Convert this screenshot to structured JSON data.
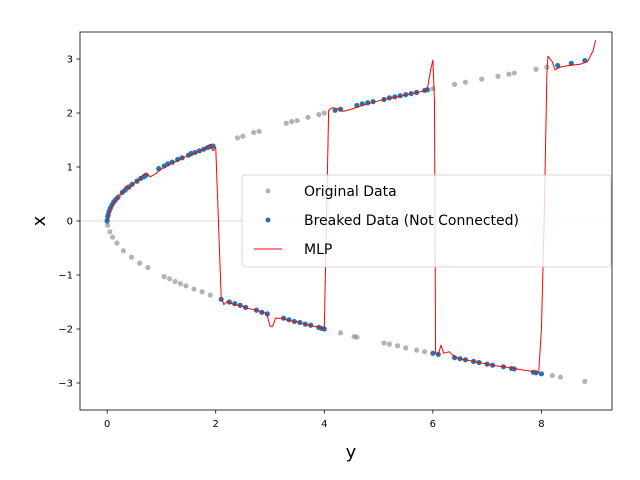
{
  "chart_data": {
    "type": "scatter",
    "xlabel": "y",
    "ylabel": "x",
    "xlim": [
      -0.5,
      9.3
    ],
    "ylim": [
      -3.5,
      3.5
    ],
    "xticks": [
      0,
      2,
      4,
      6,
      8
    ],
    "yticks": [
      -3,
      -2,
      -1,
      0,
      1,
      2,
      3
    ],
    "hline": 0,
    "grid": false,
    "legend_position": "center-right",
    "series": [
      {
        "name": "Original Data",
        "kind": "scatter",
        "color": "#808080",
        "points": [
          [
            0.0,
            0.02
          ],
          [
            0.01,
            -0.08
          ],
          [
            0.03,
            0.16
          ],
          [
            0.05,
            -0.2
          ],
          [
            0.08,
            0.28
          ],
          [
            0.1,
            -0.3
          ],
          [
            0.14,
            0.37
          ],
          [
            0.18,
            -0.41
          ],
          [
            0.22,
            0.46
          ],
          [
            0.3,
            -0.55
          ],
          [
            0.35,
            0.59
          ],
          [
            0.45,
            -0.67
          ],
          [
            0.55,
            0.73
          ],
          [
            0.6,
            -0.78
          ],
          [
            0.7,
            0.84
          ],
          [
            0.75,
            -0.86
          ],
          [
            1.05,
            -1.03
          ],
          [
            1.15,
            -1.07
          ],
          [
            1.25,
            -1.12
          ],
          [
            1.35,
            -1.16
          ],
          [
            1.45,
            -1.2
          ],
          [
            1.6,
            -1.26
          ],
          [
            1.75,
            -1.31
          ],
          [
            1.9,
            -1.37
          ],
          [
            2.4,
            1.54
          ],
          [
            2.5,
            1.57
          ],
          [
            2.7,
            1.64
          ],
          [
            2.8,
            1.66
          ],
          [
            3.3,
            1.81
          ],
          [
            3.4,
            1.84
          ],
          [
            3.5,
            1.86
          ],
          [
            3.7,
            1.92
          ],
          [
            3.9,
            1.97
          ],
          [
            4.0,
            2.0
          ],
          [
            4.3,
            -2.07
          ],
          [
            4.55,
            -2.14
          ],
          [
            4.6,
            -2.15
          ],
          [
            5.1,
            -2.26
          ],
          [
            5.2,
            -2.28
          ],
          [
            5.35,
            -2.31
          ],
          [
            5.5,
            -2.35
          ],
          [
            5.7,
            -2.39
          ],
          [
            5.85,
            -2.42
          ],
          [
            6.0,
            2.45
          ],
          [
            6.4,
            2.53
          ],
          [
            6.6,
            2.57
          ],
          [
            6.9,
            2.63
          ],
          [
            7.2,
            2.68
          ],
          [
            7.4,
            2.72
          ],
          [
            7.5,
            2.74
          ],
          [
            7.9,
            2.81
          ],
          [
            8.1,
            2.85
          ],
          [
            8.2,
            -2.86
          ],
          [
            8.35,
            -2.89
          ],
          [
            8.8,
            -2.97
          ]
        ]
      },
      {
        "name": "Breaked Data (Not Connected)",
        "kind": "scatter",
        "color": "#1f77b4",
        "points": [
          [
            0.0,
            0.0
          ],
          [
            0.01,
            0.08
          ],
          [
            0.02,
            0.12
          ],
          [
            0.04,
            0.19
          ],
          [
            0.06,
            0.24
          ],
          [
            0.09,
            0.3
          ],
          [
            0.12,
            0.35
          ],
          [
            0.15,
            0.39
          ],
          [
            0.19,
            0.43
          ],
          [
            0.28,
            0.53
          ],
          [
            0.33,
            0.57
          ],
          [
            0.4,
            0.63
          ],
          [
            0.46,
            0.68
          ],
          [
            0.55,
            0.74
          ],
          [
            0.62,
            0.79
          ],
          [
            0.68,
            0.82
          ],
          [
            0.72,
            0.85
          ],
          [
            0.95,
            0.97
          ],
          [
            1.05,
            1.02
          ],
          [
            1.12,
            1.06
          ],
          [
            1.2,
            1.09
          ],
          [
            1.3,
            1.14
          ],
          [
            1.38,
            1.17
          ],
          [
            1.5,
            1.22
          ],
          [
            1.55,
            1.25
          ],
          [
            1.62,
            1.27
          ],
          [
            1.7,
            1.3
          ],
          [
            1.78,
            1.33
          ],
          [
            1.85,
            1.36
          ],
          [
            1.9,
            1.38
          ],
          [
            1.95,
            1.39
          ],
          [
            2.1,
            -1.45
          ],
          [
            2.25,
            -1.5
          ],
          [
            2.35,
            -1.53
          ],
          [
            2.45,
            -1.56
          ],
          [
            2.55,
            -1.6
          ],
          [
            2.75,
            -1.65
          ],
          [
            2.85,
            -1.69
          ],
          [
            2.95,
            -1.72
          ],
          [
            3.25,
            -1.8
          ],
          [
            3.35,
            -1.83
          ],
          [
            3.45,
            -1.86
          ],
          [
            3.55,
            -1.88
          ],
          [
            3.65,
            -1.91
          ],
          [
            3.75,
            -1.93
          ],
          [
            3.9,
            -1.97
          ],
          [
            3.95,
            -1.99
          ],
          [
            4.0,
            -2.0
          ],
          [
            4.2,
            2.05
          ],
          [
            4.3,
            2.07
          ],
          [
            4.6,
            2.14
          ],
          [
            4.7,
            2.17
          ],
          [
            4.8,
            2.19
          ],
          [
            4.9,
            2.21
          ],
          [
            5.1,
            2.25
          ],
          [
            5.2,
            2.28
          ],
          [
            5.3,
            2.3
          ],
          [
            5.4,
            2.32
          ],
          [
            5.5,
            2.34
          ],
          [
            5.6,
            2.36
          ],
          [
            5.7,
            2.38
          ],
          [
            5.85,
            2.42
          ],
          [
            5.9,
            2.43
          ],
          [
            6.0,
            -2.45
          ],
          [
            6.1,
            -2.47
          ],
          [
            6.4,
            -2.53
          ],
          [
            6.5,
            -2.55
          ],
          [
            6.6,
            -2.57
          ],
          [
            6.75,
            -2.6
          ],
          [
            6.85,
            -2.62
          ],
          [
            7.0,
            -2.65
          ],
          [
            7.1,
            -2.67
          ],
          [
            7.3,
            -2.7
          ],
          [
            7.45,
            -2.73
          ],
          [
            7.5,
            -2.74
          ],
          [
            7.85,
            -2.8
          ],
          [
            7.9,
            -2.81
          ],
          [
            8.0,
            -2.83
          ],
          [
            8.3,
            2.88
          ],
          [
            8.55,
            2.92
          ],
          [
            8.8,
            2.97
          ]
        ]
      },
      {
        "name": "MLP",
        "kind": "line",
        "color": "#ff0000",
        "points": [
          [
            0.0,
            0.0
          ],
          [
            0.05,
            0.2
          ],
          [
            0.1,
            0.3
          ],
          [
            0.2,
            0.45
          ],
          [
            0.3,
            0.55
          ],
          [
            0.35,
            0.65
          ],
          [
            0.4,
            0.6
          ],
          [
            0.5,
            0.7
          ],
          [
            0.6,
            0.78
          ],
          [
            0.7,
            0.88
          ],
          [
            0.8,
            0.82
          ],
          [
            0.9,
            0.88
          ],
          [
            1.0,
            0.96
          ],
          [
            1.2,
            1.07
          ],
          [
            1.4,
            1.17
          ],
          [
            1.6,
            1.25
          ],
          [
            1.8,
            1.33
          ],
          [
            1.9,
            1.42
          ],
          [
            1.95,
            1.3
          ],
          [
            2.0,
            1.37
          ],
          [
            2.05,
            0.0
          ],
          [
            2.1,
            -1.4
          ],
          [
            2.15,
            -1.55
          ],
          [
            2.2,
            -1.5
          ],
          [
            2.3,
            -1.53
          ],
          [
            2.4,
            -1.56
          ],
          [
            2.5,
            -1.58
          ],
          [
            2.6,
            -1.62
          ],
          [
            2.7,
            -1.64
          ],
          [
            2.8,
            -1.67
          ],
          [
            2.9,
            -1.7
          ],
          [
            2.95,
            -1.75
          ],
          [
            3.0,
            -1.95
          ],
          [
            3.05,
            -1.95
          ],
          [
            3.1,
            -1.8
          ],
          [
            3.2,
            -1.8
          ],
          [
            3.3,
            -1.83
          ],
          [
            3.4,
            -1.85
          ],
          [
            3.5,
            -1.87
          ],
          [
            3.6,
            -1.89
          ],
          [
            3.7,
            -1.93
          ],
          [
            3.8,
            -1.95
          ],
          [
            3.9,
            -1.97
          ],
          [
            4.0,
            -2.0
          ],
          [
            4.05,
            0.5
          ],
          [
            4.08,
            2.05
          ],
          [
            4.15,
            2.1
          ],
          [
            4.25,
            2.08
          ],
          [
            4.35,
            2.03
          ],
          [
            4.5,
            2.07
          ],
          [
            4.7,
            2.14
          ],
          [
            4.9,
            2.2
          ],
          [
            5.1,
            2.25
          ],
          [
            5.3,
            2.29
          ],
          [
            5.5,
            2.33
          ],
          [
            5.7,
            2.38
          ],
          [
            5.85,
            2.41
          ],
          [
            5.9,
            2.45
          ],
          [
            5.95,
            2.75
          ],
          [
            6.0,
            2.98
          ],
          [
            6.03,
            2.2
          ],
          [
            6.05,
            -2.45
          ],
          [
            6.1,
            -2.47
          ],
          [
            6.15,
            -2.3
          ],
          [
            6.2,
            -2.45
          ],
          [
            6.3,
            -2.42
          ],
          [
            6.4,
            -2.52
          ],
          [
            6.5,
            -2.55
          ],
          [
            6.6,
            -2.57
          ],
          [
            6.75,
            -2.6
          ],
          [
            6.85,
            -2.62
          ],
          [
            7.0,
            -2.65
          ],
          [
            7.15,
            -2.68
          ],
          [
            7.3,
            -2.7
          ],
          [
            7.45,
            -2.72
          ],
          [
            7.6,
            -2.75
          ],
          [
            7.8,
            -2.78
          ],
          [
            7.9,
            -2.8
          ],
          [
            7.95,
            -2.8
          ],
          [
            8.0,
            -2.0
          ],
          [
            8.05,
            0.0
          ],
          [
            8.1,
            2.7
          ],
          [
            8.12,
            3.05
          ],
          [
            8.2,
            2.95
          ],
          [
            8.25,
            2.8
          ],
          [
            8.35,
            2.85
          ],
          [
            8.5,
            2.88
          ],
          [
            8.7,
            2.9
          ],
          [
            8.85,
            2.95
          ],
          [
            8.95,
            3.15
          ],
          [
            9.0,
            3.35
          ]
        ]
      }
    ]
  }
}
